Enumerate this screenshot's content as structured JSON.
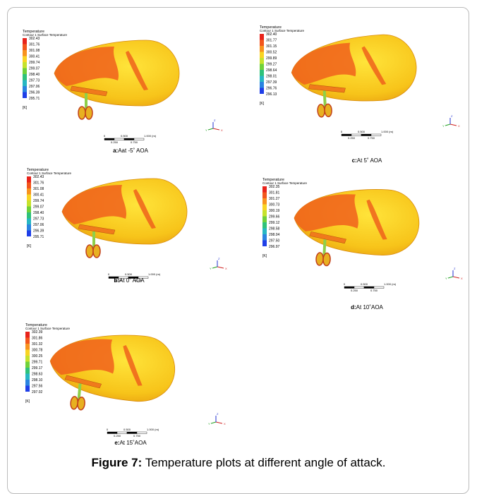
{
  "panels": [
    {
      "legend_title": "Temperature",
      "legend_subtitle": "Contour 1 Surface Temperature",
      "legend_values": [
        "302.43",
        "301.76",
        "301.08",
        "300.41",
        "299.74",
        "299.07",
        "298.40",
        "297.73",
        "297.06",
        "296.39",
        "295.71"
      ],
      "unit": "[K]",
      "scale_labels": [
        "0",
        "0.500",
        "1.000 (m)",
        "0.250",
        "0.750"
      ],
      "axis_labels": [
        "X",
        "Y",
        "Z"
      ],
      "caption_label": "a:",
      "caption_text": "Aat -5˚ AOA"
    },
    {
      "legend_title": "Temperature",
      "legend_subtitle": "Contour 1 Surface Temperature",
      "legend_values": [
        "302.40",
        "301.77",
        "301.15",
        "300.52",
        "299.89",
        "299.27",
        "298.64",
        "298.01",
        "297.39",
        "296.76",
        "296.13"
      ],
      "unit": "[K]",
      "scale_labels": [
        "0",
        "0.500",
        "1.000 (m)",
        "0.250",
        "0.750"
      ],
      "axis_labels": [
        "X",
        "Y",
        "Z"
      ],
      "caption_label": "c:",
      "caption_text": "At 5˚ AOA"
    },
    {
      "legend_title": "Temperature",
      "legend_subtitle": "Contour 1 Surface Temperature",
      "legend_values": [
        "302.43",
        "301.76",
        "301.08",
        "300.41",
        "299.74",
        "299.07",
        "298.40",
        "297.73",
        "297.06",
        "296.39",
        "295.71"
      ],
      "unit": "[K]",
      "scale_labels": [
        "0",
        "0.500",
        "1.000 (m)",
        "0.250",
        "0.750"
      ],
      "axis_labels": [
        "X",
        "Y",
        "Z"
      ],
      "caption_label": "b:",
      "caption_text": "At 0˚ AOA"
    },
    {
      "legend_title": "Temperature",
      "legend_subtitle": "Contour 1 Surface Temperature",
      "legend_values": [
        "302.35",
        "301.81",
        "301.27",
        "300.73",
        "300.19",
        "299.66",
        "299.12",
        "298.58",
        "298.04",
        "297.50",
        "296.97"
      ],
      "unit": "[K]",
      "scale_labels": [
        "0",
        "0.500",
        "1.000 (m)",
        "0.250",
        "0.750"
      ],
      "axis_labels": [
        "X",
        "Y",
        "Z"
      ],
      "caption_label": "d:",
      "caption_text": "At 10˚AOA"
    },
    {
      "legend_title": "Temperature",
      "legend_subtitle": "Contour 1 Surface Temperature",
      "legend_values": [
        "302.39",
        "301.86",
        "301.32",
        "300.78",
        "300.25",
        "299.71",
        "299.17",
        "298.63",
        "298.10",
        "297.56",
        "297.02"
      ],
      "unit": "[K]",
      "scale_labels": [
        "0",
        "0.500",
        "1.000 (m)",
        "0.250",
        "0.750"
      ],
      "axis_labels": [
        "X",
        "Y",
        "Z"
      ],
      "caption_label": "e:",
      "caption_text": "At 15˚AOA"
    }
  ],
  "figure_caption": {
    "label": "Figure 7:",
    "text": "Temperature plots at different angle of attack."
  }
}
